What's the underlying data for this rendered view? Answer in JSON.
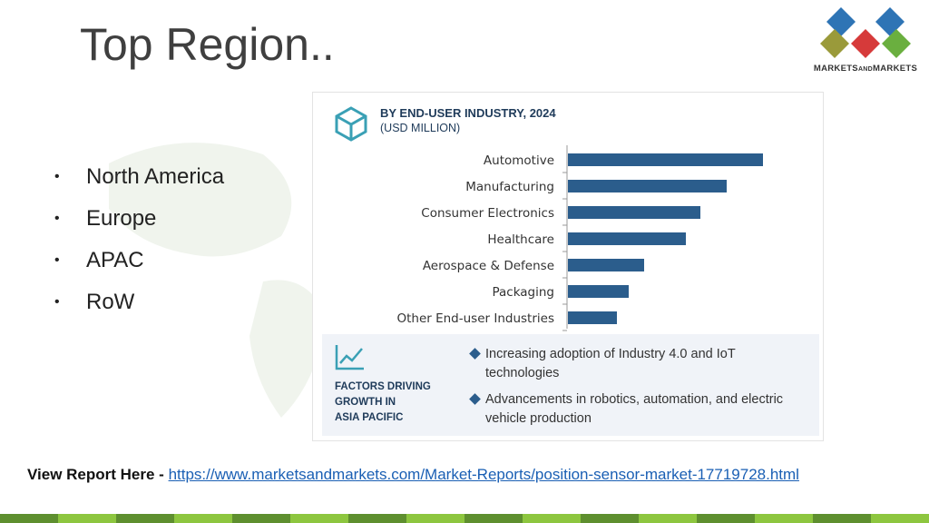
{
  "slide": {
    "title": "Top Region..",
    "bullets": [
      "North America",
      "Europe",
      "APAC",
      "RoW"
    ]
  },
  "logo": {
    "text_main": "MARKETS",
    "text_and": "AND",
    "text_end": "MARKETS",
    "colors": [
      "#2e74b5",
      "#8a9a3a",
      "#d63a3a",
      "#6aaf3f"
    ]
  },
  "panel": {
    "title": "BY END-USER INDUSTRY, 2024",
    "subtitle": "(USD MILLION)",
    "icon": "box-icon"
  },
  "chart_data": {
    "type": "bar",
    "orientation": "horizontal",
    "categories": [
      "Automotive",
      "Manufacturing",
      "Consumer Electronics",
      "Healthcare",
      "Aerospace & Defense",
      "Packaging",
      "Other End-user Industries"
    ],
    "values": [
      215,
      175,
      146,
      130,
      84,
      67,
      54
    ],
    "title": "BY END-USER INDUSTRY, 2024",
    "subtitle": "(USD MILLION)",
    "bar_color": "#2b5d8c",
    "grid": false
  },
  "factors": {
    "icon": "trend-line-icon",
    "label_lines": [
      "FACTORS DRIVING",
      "GROWTH IN",
      "ASIA PACIFIC"
    ],
    "items": [
      "Increasing adoption of Industry 4.0 and IoT technologies",
      "Advancements in robotics, automation, and electric vehicle production"
    ]
  },
  "report": {
    "label": "View Report Here - ",
    "url": "https://www.marketsandmarkets.com/Market-Reports/position-sensor-market-17719728.html"
  },
  "footer_colors": [
    "#5e8f2f",
    "#8dc63f"
  ]
}
